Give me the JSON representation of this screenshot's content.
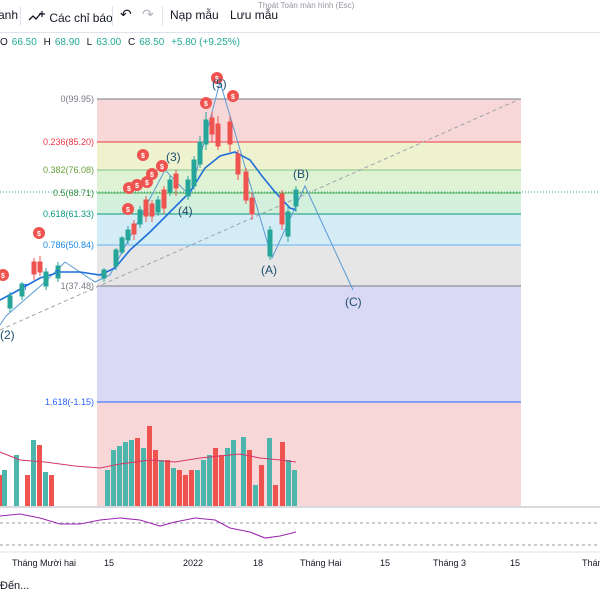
{
  "toolbar": {
    "item_partial": "anh",
    "indicators_label": "Các chỉ báo",
    "templates_label": "Nạp mẫu",
    "save_label": "Lưu mẫu",
    "fullscreen_tip": "Thoát Toàn màn hình (Esc)"
  },
  "ohlc": {
    "o_label": "O",
    "o": "66.50",
    "h_label": "H",
    "h": "68.90",
    "l_label": "L",
    "l": "63.00",
    "c_label": "C",
    "c": "68.50",
    "change": "+5.80 (+9.25%)"
  },
  "fib_levels": [
    {
      "ratio": "0",
      "price": "99.95",
      "color": "#787b86"
    },
    {
      "ratio": "0.236",
      "price": "85.20",
      "color": "#f23645"
    },
    {
      "ratio": "0.382",
      "price": "76.08",
      "color": "#81c784"
    },
    {
      "ratio": "0.5",
      "price": "68.71",
      "color": "#4caf50"
    },
    {
      "ratio": "0.618",
      "price": "61.33",
      "color": "#089981"
    },
    {
      "ratio": "0.786",
      "price": "50.84",
      "color": "#64b5f6"
    },
    {
      "ratio": "1",
      "price": "37.48",
      "color": "#787b86"
    },
    {
      "ratio": "1.618",
      "price": "-1.15",
      "color": "#2962ff"
    }
  ],
  "wave_labels": [
    "(2)",
    "(3)",
    "(4)",
    "(5)",
    "(A)",
    "(B)",
    "(C)"
  ],
  "time_axis": [
    "Tháng Mười hai",
    "15",
    "2022",
    "18",
    "Tháng Hai",
    "15",
    "Tháng 3",
    "15",
    "Tháng"
  ],
  "colors": {
    "up": "#26a69a",
    "down": "#ef5350",
    "ma": "#1e6fd9",
    "vol_ma": "#d6396a",
    "osc": "#9c27b0"
  },
  "bottom_hint": "Đến..."
}
